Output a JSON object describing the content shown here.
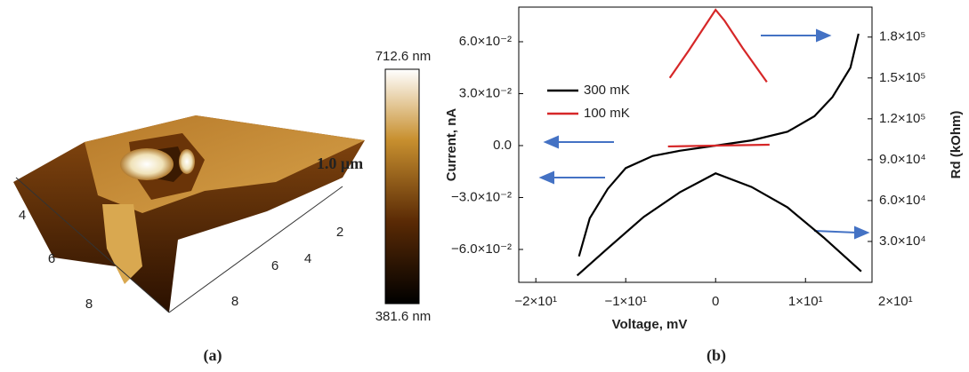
{
  "panel_a": {
    "colorbar_max": "712.6 nm",
    "colorbar_min": "381.6 nm",
    "height_scale": "1.0 μm",
    "left_axis_labels": [
      "4",
      "6",
      "8"
    ],
    "right_axis_labels": [
      "2",
      "4",
      "6",
      "8"
    ],
    "caption": "(a)"
  },
  "chart_data": {
    "type": "line",
    "caption": "(b)",
    "x_label": "Voltage, mV",
    "y_label": "Current, nA",
    "y2_label": "Rd (kOhm)",
    "xlim": [
      -21.9,
      17.4
    ],
    "ylim": [
      -0.079,
      0.08
    ],
    "y2lim": [
      0,
      202000
    ],
    "xticks": [
      {
        "value": -20,
        "label": "−2×10¹"
      },
      {
        "value": -10,
        "label": "−1×10¹"
      },
      0,
      {
        "value": 10,
        "label": "1×10¹"
      },
      {
        "value": 20,
        "label": "2×10¹"
      }
    ],
    "yticks": [
      {
        "value": -0.06,
        "label": "−6.0×10⁻²"
      },
      {
        "value": -0.03,
        "label": "−3.0×10⁻²"
      },
      {
        "value": 0,
        "label": "0.0"
      },
      {
        "value": 0.03,
        "label": "3.0×10⁻²"
      },
      {
        "value": 0.06,
        "label": "6.0×10⁻²"
      }
    ],
    "y2ticks": [
      {
        "value": 30000,
        "label": "3.0×10⁴"
      },
      {
        "value": 60000,
        "label": "6.0×10⁴"
      },
      {
        "value": 90000,
        "label": "9.0×10⁴"
      },
      {
        "value": 120000,
        "label": "1.2×10⁵"
      },
      {
        "value": 150000,
        "label": "1.5×10⁵"
      },
      {
        "value": 180000,
        "label": "1.8×10⁵"
      }
    ],
    "series": [
      {
        "name": "300 mK",
        "color": "#000000",
        "x": [
          -15.2,
          -14,
          -12,
          -10,
          -7,
          -4,
          0,
          4,
          8,
          11,
          13,
          15,
          15.9
        ],
        "values": [
          -0.064,
          -0.042,
          -0.025,
          -0.013,
          -0.006,
          -0.003,
          0,
          0.003,
          0.008,
          0.017,
          0.028,
          0.045,
          0.0646
        ]
      },
      {
        "name": "100 mK",
        "color": "#d62728",
        "x": [
          -5.3,
          0,
          6
        ],
        "values": [
          -0.0005,
          0,
          0.0005
        ]
      },
      {
        "name": "300 mK",
        "color": "#000000",
        "axis": "y2",
        "x": [
          -15.4,
          -12,
          -8,
          -4,
          0,
          4,
          8,
          12,
          16.2
        ],
        "values": [
          5000,
          25000,
          48000,
          66000,
          80000,
          70000,
          55000,
          33000,
          8000
        ]
      },
      {
        "name": "100 mK",
        "color": "#d62728",
        "axis": "y2",
        "x": [
          -5.1,
          -3,
          -1,
          0,
          1,
          3,
          5.7
        ],
        "values": [
          150000,
          170000,
          190000,
          200000,
          192000,
          172000,
          147000
        ]
      }
    ]
  }
}
